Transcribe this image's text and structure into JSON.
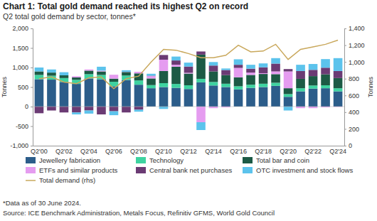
{
  "chart_data": {
    "type": "bar",
    "stacked": true,
    "title": "Chart 1: Total gold demand reached its highest Q2 on record",
    "subtitle": "Q2 total gold demand by sector, tonnes*",
    "y_label": "Tonnes",
    "y2_label": "Tonnes",
    "footnote": "*Data as of 30 June 2024.",
    "source": "Source: ICE Benchmark Administration, Metals Focus, Refinitiv GFMS, World Gold Council",
    "categories": [
      "Q2'00",
      null,
      "Q2'02",
      null,
      "Q2'04",
      null,
      "Q2'06",
      null,
      "Q2'08",
      null,
      "Q2'10",
      null,
      "Q2'12",
      null,
      "Q2'14",
      null,
      "Q2'16",
      null,
      "Q2'18",
      null,
      "Q2'20",
      null,
      "Q2'22",
      null,
      "Q2'24"
    ],
    "ylim": [
      -1000,
      2000
    ],
    "yticks": [
      {
        "value": -1000,
        "label": "-1,000"
      },
      -500,
      0,
      500,
      {
        "value": 1000,
        "label": "1,000"
      },
      {
        "value": 1500,
        "label": "1,500"
      },
      {
        "value": 2000,
        "label": "2,000"
      }
    ],
    "y2lim": [
      0,
      1400
    ],
    "y2ticks": [
      0,
      200,
      400,
      600,
      800,
      {
        "value": 1000,
        "label": "1,000"
      },
      {
        "value": 1200,
        "label": "1,200"
      },
      {
        "value": 1400,
        "label": "1,400"
      }
    ],
    "grid": false,
    "legend": "bottom",
    "series": [
      {
        "name": "Jewellery fabrication",
        "color": "#2c5d8a",
        "values": [
          700,
          690,
          630,
          580,
          720,
          700,
          520,
          680,
          560,
          470,
          500,
          480,
          450,
          620,
          540,
          500,
          440,
          480,
          500,
          530,
          250,
          390,
          460,
          470,
          390
        ]
      },
      {
        "name": "Technology",
        "color": "#3ed3a0",
        "values": [
          110,
          100,
          100,
          105,
          110,
          110,
          115,
          115,
          110,
          80,
          100,
          100,
          95,
          90,
          90,
          85,
          80,
          80,
          85,
          80,
          70,
          80,
          80,
          75,
          80
        ]
      },
      {
        "name": "Total bar and coin",
        "color": "#1c5a45",
        "values": [
          90,
          80,
          70,
          60,
          90,
          90,
          80,
          90,
          180,
          170,
          310,
          440,
          300,
          620,
          270,
          220,
          230,
          250,
          250,
          220,
          150,
          240,
          240,
          280,
          260
        ]
      },
      {
        "name": "ETFs and similar products",
        "color": "#e59cf0",
        "values": [
          0,
          0,
          0,
          30,
          30,
          20,
          100,
          5,
          40,
          60,
          290,
          50,
          20,
          -400,
          -40,
          -20,
          240,
          60,
          20,
          70,
          430,
          -40,
          -40,
          -20,
          -7
        ]
      },
      {
        "name": "Central bank net purchases",
        "color": "#6b3b74",
        "values": [
          -170,
          -100,
          -150,
          -150,
          -100,
          -200,
          -120,
          -150,
          -80,
          10,
          120,
          110,
          160,
          80,
          150,
          130,
          80,
          100,
          150,
          200,
          60,
          200,
          160,
          170,
          180
        ]
      },
      {
        "name": "OTC investment and stock flows",
        "color": "#5cc3ec",
        "values": [
          100,
          80,
          80,
          -50,
          -80,
          100,
          -100,
          40,
          -50,
          50,
          -60,
          100,
          100,
          -200,
          90,
          40,
          140,
          100,
          100,
          140,
          -100,
          160,
          150,
          220,
          330
        ]
      },
      {
        "name": "Total demand (rhs)",
        "color": "#c9a85c",
        "type": "line",
        "axis": "y2",
        "values": [
          800,
          820,
          760,
          740,
          810,
          820,
          680,
          800,
          830,
          1000,
          1150,
          1140,
          1100,
          1050,
          1050,
          1080,
          1200,
          1120,
          1130,
          1210,
          1030,
          1150,
          1180,
          1210,
          1260
        ]
      }
    ]
  }
}
